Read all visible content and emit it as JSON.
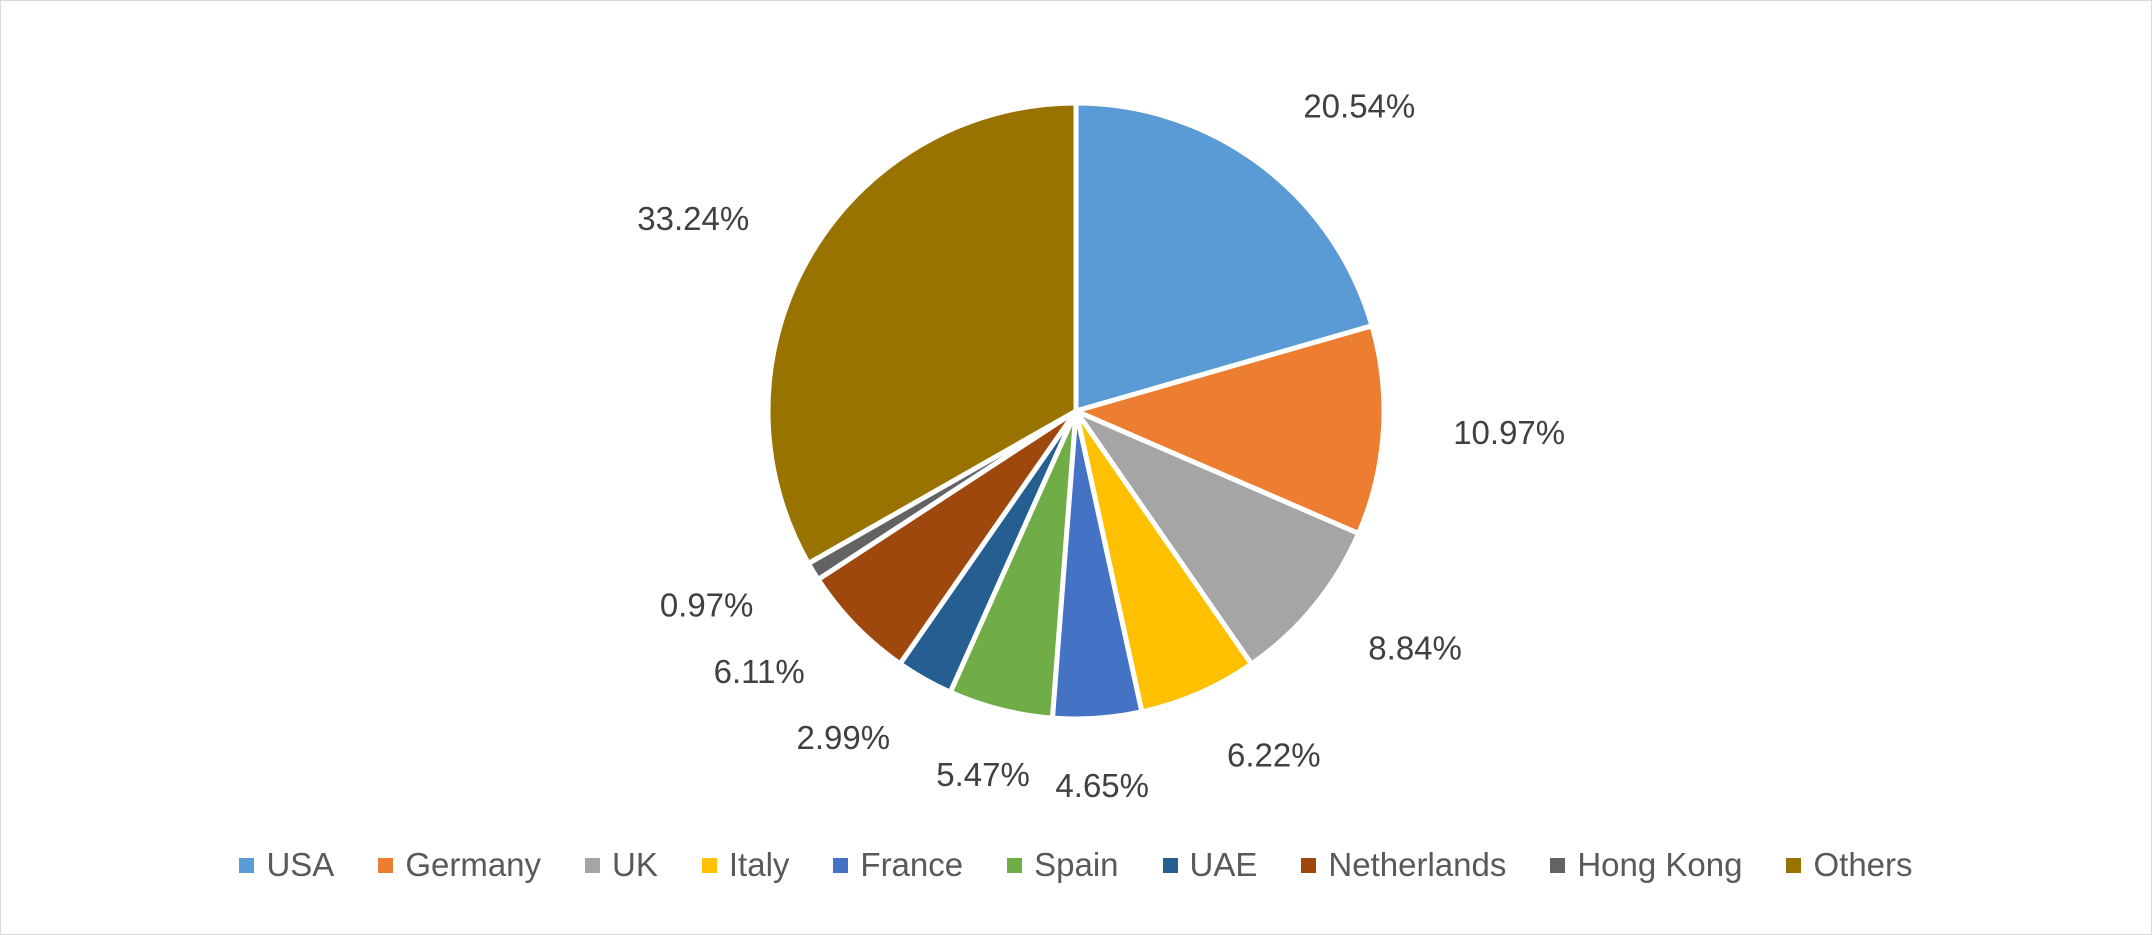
{
  "chart_data": {
    "type": "pie",
    "categories": [
      "USA",
      "Germany",
      "UK",
      "Italy",
      "France",
      "Spain",
      "UAE",
      "Netherlands",
      "Hong Kong",
      "Others"
    ],
    "values": [
      20.54,
      10.97,
      8.84,
      6.22,
      4.65,
      5.47,
      2.99,
      6.11,
      0.97,
      33.24
    ],
    "value_labels": [
      "20.54%",
      "10.97%",
      "8.84%",
      "6.22%",
      "4.65%",
      "5.47%",
      "2.99%",
      "6.11%",
      "0.97%",
      "33.24%"
    ],
    "colors": [
      "#5b9bd5",
      "#ed7d31",
      "#a5a5a5",
      "#ffc000",
      "#4472c4",
      "#70ad47",
      "#255e91",
      "#9e480e",
      "#636363",
      "#997300"
    ],
    "legend": "bottom"
  }
}
